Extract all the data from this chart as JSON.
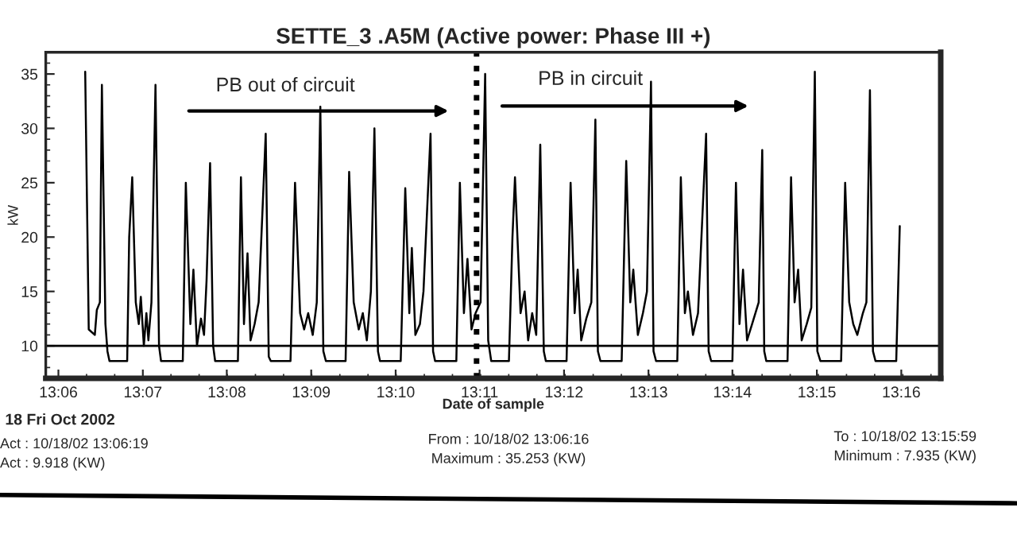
{
  "chart_data": {
    "type": "line",
    "title": "SETTE_3 .A5M (Active power: Phase III +)",
    "xlabel": "Date of sample",
    "ylabel": "kW",
    "annotations": [
      "PB out of circuit",
      "PB in circuit",
      "18 Fri Oct 2002",
      "Act : 10/18/02 13:06:19",
      "Act : 9.918 (KW)",
      "From : 10/18/02 13:06:16",
      "Maximum : 35.253 (KW)",
      "To : 10/18/02 13:15:59",
      "Minimum : 7.935 (KW)"
    ],
    "x": [
      13.1053,
      13.106,
      13.1072,
      13.1076,
      13.1082,
      13.1086,
      13.1093,
      13.1097,
      13.1101,
      13.1136,
      13.114,
      13.1146,
      13.1153,
      13.1159,
      13.1163,
      13.1169,
      13.1174,
      13.1178,
      13.1184,
      13.1192,
      13.1199,
      13.1203,
      13.1246,
      13.1252,
      13.1261,
      13.1267,
      13.1274,
      13.1282,
      13.1288,
      13.1293,
      13.13,
      13.1306,
      13.131,
      13.1355,
      13.1361,
      13.1367,
      13.1374,
      13.138,
      13.1388,
      13.1396,
      13.141,
      13.1416,
      13.142,
      13.1459,
      13.1468,
      13.1478,
      13.1486,
      13.1494,
      13.1503,
      13.1511,
      13.1518,
      13.1524,
      13.1529,
      13.1568,
      13.1575,
      13.1584,
      13.1594,
      13.1602,
      13.161,
      13.1618,
      13.1625,
      13.1632,
      13.1636,
      13.1677,
      13.1686,
      13.1694,
      13.1699,
      13.1706,
      13.1715,
      13.1722,
      13.1736,
      13.1741,
      13.1745,
      13.1787,
      13.1794,
      13.1802,
      13.1809,
      13.1817,
      13.1825,
      13.1835,
      13.1844,
      13.185,
      13.1856,
      13.1891,
      13.1898,
      13.1903,
      13.1914,
      13.1922,
      13.1929,
      13.1937,
      13.1945,
      13.1953,
      13.196,
      13.1964,
      13.2005,
      13.2013,
      13.2021,
      13.2027,
      13.2034,
      13.2044,
      13.2054,
      13.2062,
      13.2067,
      13.2072,
      13.2114,
      13.2123,
      13.2131,
      13.2137,
      13.2146,
      13.2156,
      13.2164,
      13.2172,
      13.2177,
      13.2182,
      13.2224,
      13.2231,
      13.2239,
      13.2245,
      13.2255,
      13.2265,
      13.2281,
      13.2286,
      13.2291,
      13.2333,
      13.234,
      13.2347,
      13.2354,
      13.2362,
      13.2372,
      13.2385,
      13.2392,
      13.2396,
      13.24,
      13.2442,
      13.2449,
      13.2456,
      13.2463,
      13.247,
      13.248,
      13.2489,
      13.2496,
      13.2501,
      13.2507,
      13.2548,
      13.2556,
      13.2564,
      13.2572,
      13.258,
      13.2591,
      13.2598,
      13.2605,
      13.2611,
      13.2616,
      13.2657,
      13.2664
    ],
    "series": [
      {
        "color": "#000000",
        "values": [
          35.2,
          11.5,
          11,
          13.3,
          14,
          34,
          12,
          9.5,
          8.6,
          8.6,
          20,
          25.5,
          14,
          12,
          14.5,
          10,
          13,
          10.5,
          14,
          34,
          10,
          8.6,
          8.6,
          25,
          12,
          17,
          10,
          12.5,
          11,
          16,
          26.8,
          10,
          8.6,
          8.6,
          25.5,
          12,
          18.5,
          10.5,
          12,
          14,
          29.5,
          9,
          8.6,
          8.6,
          25,
          13,
          11.5,
          13,
          11,
          14,
          32,
          9.5,
          8.6,
          8.6,
          26,
          14,
          11.5,
          13,
          10.5,
          15,
          30,
          9.5,
          8.6,
          8.6,
          24.5,
          13,
          19,
          11,
          12,
          15,
          29.5,
          9.5,
          8.6,
          8.6,
          25,
          13,
          18,
          11.5,
          13,
          14,
          35,
          10.5,
          8.6,
          8.6,
          20,
          25.5,
          13,
          15,
          10.5,
          13,
          11,
          28.5,
          9.5,
          8.6,
          8.6,
          25,
          13,
          17,
          10.5,
          12.5,
          14,
          30.8,
          9.5,
          8.6,
          8.6,
          27,
          14,
          17,
          11,
          13,
          15,
          34.3,
          9.5,
          8.6,
          8.6,
          25.5,
          13,
          15,
          11,
          13,
          29.5,
          9.5,
          8.6,
          8.6,
          25,
          12,
          17,
          10.5,
          12,
          14,
          28,
          9.5,
          8.6,
          8.6,
          25.5,
          14,
          17,
          10.5,
          12,
          13.5,
          35.2,
          9.5,
          8.6,
          8.6,
          25,
          14,
          12,
          11,
          13,
          14,
          33.5,
          9.5,
          8.6,
          8.6,
          21
        ]
      }
    ],
    "xlim": [
      13.0975,
      13.2745
    ],
    "ylim": [
      7,
      37
    ],
    "xticks": [
      {
        "value": 13.1,
        "label": "13:06"
      },
      {
        "value": 13.1167,
        "label": "13:07"
      },
      {
        "value": 13.1333,
        "label": "13:08"
      },
      {
        "value": 13.15,
        "label": "13:09"
      },
      {
        "value": 13.1667,
        "label": "13:10"
      },
      {
        "value": 13.1833,
        "label": "13:11"
      },
      {
        "value": 13.2,
        "label": "13:12"
      },
      {
        "value": 13.2167,
        "label": "13:13"
      },
      {
        "value": 13.2333,
        "label": "13:14"
      },
      {
        "value": 13.25,
        "label": "13:15"
      },
      {
        "value": 13.2667,
        "label": "13:16"
      }
    ],
    "yticks": [
      10,
      15,
      20,
      25,
      30,
      35
    ],
    "ref_lines": [
      {
        "axis": "y",
        "value": 10,
        "color": "#000000",
        "line_style": "solid"
      },
      {
        "axis": "x",
        "value": 13.1827,
        "color": "#000000",
        "line_style": "dotted"
      }
    ],
    "grid": false,
    "legend": false,
    "line_style": "solid",
    "marker": "none"
  }
}
